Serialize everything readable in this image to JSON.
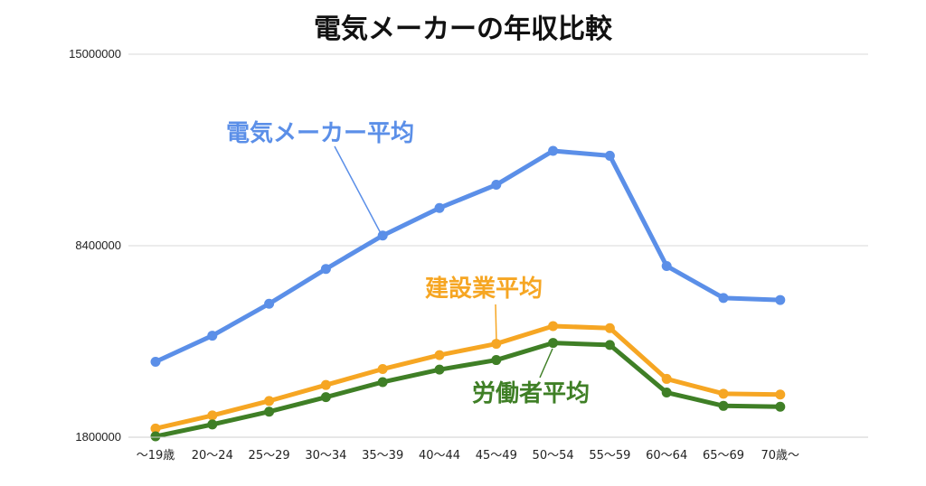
{
  "chart_data": {
    "type": "line",
    "title": "電気メーカーの年収比較",
    "xlabel": "",
    "ylabel": "",
    "ylim": [
      1800000,
      15000000
    ],
    "yticks": [
      "15000000",
      "8400000",
      "1800000"
    ],
    "categories": [
      "〜19歳",
      "20〜24",
      "25〜29",
      "30〜34",
      "35〜39",
      "40〜44",
      "45〜49",
      "50〜54",
      "55〜59",
      "60〜64",
      "65〜69",
      "70歳〜"
    ],
    "grid": true,
    "series": [
      {
        "name": "電気メーカー平均",
        "color": "#5b8fe8",
        "values": [
          4400000,
          5300000,
          6400000,
          7600000,
          8750000,
          9700000,
          10500000,
          11670000,
          11500000,
          7700000,
          6600000,
          6530000
        ]
      },
      {
        "name": "建設業平均",
        "color": "#f6a623",
        "values": [
          2100000,
          2550000,
          3050000,
          3600000,
          4150000,
          4630000,
          5020000,
          5630000,
          5560000,
          3810000,
          3300000,
          3270000
        ]
      },
      {
        "name": "労働者平均",
        "color": "#3f7f26",
        "values": [
          1830000,
          2240000,
          2680000,
          3180000,
          3700000,
          4130000,
          4460000,
          5050000,
          4980000,
          3340000,
          2880000,
          2850000
        ]
      }
    ]
  }
}
